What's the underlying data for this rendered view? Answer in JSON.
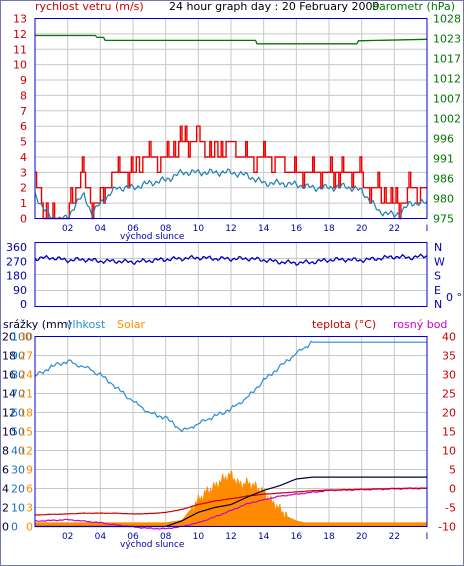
{
  "texts": {
    "wind_speed_label": "rychlost vetru (m/s)",
    "graph_title": "24 hour graph day : 20 February 2009",
    "barometer_label": "barometr (hPa)",
    "sunrise_label_1": "východ slunce",
    "sunrise_label_2": "východ slunce",
    "precip_label": "srážky (mm)",
    "humidity_label": "vlhkost",
    "solar_label": "Solar",
    "temp_label": "teplota (°C)",
    "dew_label": "rosný bod",
    "dir_unit": "0 °"
  },
  "colors": {
    "wind_gust": "#ee0000",
    "wind_avg": "#1e7fb0",
    "barometer": "#007700",
    "direction": "#0000bb",
    "humidity": "#2a8cd4",
    "solar": "#ff8c00",
    "temperature": "#cc0000",
    "dew_point": "#cc00cc",
    "precip": "#000033",
    "frame": "#0000cc",
    "grid": "#c8c8c8"
  },
  "chart_data": [
    {
      "type": "line",
      "title": "24 hour graph day : 20 February 2009",
      "x_ticks": [
        "02",
        "04",
        "06",
        "08",
        "10",
        "12",
        "14",
        "16",
        "18",
        "20",
        "22",
        "I"
      ],
      "left_axis": {
        "label": "rychlost vetru (m/s)",
        "ylim": [
          0,
          13
        ],
        "ticks": [
          "0",
          "1",
          "2",
          "3",
          "4",
          "5",
          "6",
          "7",
          "8",
          "9",
          "10",
          "11",
          "12",
          "13"
        ]
      },
      "right_axis": {
        "label": "barometr (hPa)",
        "ylim": [
          975,
          1028
        ],
        "ticks": [
          "975",
          "980",
          "986",
          "991",
          "996",
          "1002",
          "1007",
          "1012",
          "1017",
          "1023",
          "1028"
        ]
      },
      "series": [
        {
          "name": "gust",
          "axis": "left",
          "hours": [
            0,
            1,
            2,
            2.5,
            3,
            3.5,
            4,
            5,
            6,
            7,
            8,
            9,
            10,
            11,
            12,
            13,
            14,
            15,
            16,
            17,
            18,
            19,
            20,
            20.5,
            21,
            22,
            22.5,
            23,
            24
          ],
          "values": [
            3,
            0,
            0,
            2,
            3,
            1,
            1,
            3,
            3,
            4,
            4,
            5,
            5,
            4,
            5,
            4,
            4,
            4,
            3,
            3,
            3,
            3,
            3,
            2,
            2,
            1,
            1,
            2,
            2
          ]
        },
        {
          "name": "avg",
          "axis": "left",
          "hours": [
            0,
            1,
            2,
            2.5,
            3,
            3.5,
            4,
            5,
            6,
            7,
            8,
            9,
            10,
            11,
            12,
            13,
            14,
            15,
            16,
            17,
            18,
            19,
            20,
            20.5,
            21,
            22,
            22.5,
            23,
            24
          ],
          "values": [
            1.5,
            0,
            0,
            1,
            1.5,
            0.3,
            1,
            2,
            2,
            2.3,
            2.5,
            3,
            3,
            3,
            3,
            2.8,
            2.3,
            2.3,
            2.2,
            2,
            2,
            2.1,
            1.8,
            1.2,
            0.5,
            0.2,
            0.5,
            1,
            1
          ]
        },
        {
          "name": "barometer",
          "axis": "right",
          "hours": [
            0,
            3.7,
            3.8,
            4.2,
            4.3,
            13.5,
            13.6,
            19.7,
            19.8,
            24
          ],
          "values": [
            1023.5,
            1023.5,
            1023,
            1023,
            1022.2,
            1022.2,
            1021.3,
            1021.3,
            1022.1,
            1022.5
          ]
        }
      ]
    },
    {
      "type": "line",
      "title": "",
      "x_ticks": [],
      "left_axis": {
        "ylim": [
          0,
          360
        ],
        "ticks": [
          "0",
          "90",
          "180",
          "270",
          "360"
        ]
      },
      "right_axis": {
        "ticks": [
          "N",
          "W",
          "S",
          "E",
          "N"
        ]
      },
      "series": [
        {
          "name": "direction",
          "hours": [
            0,
            1,
            2,
            3,
            4,
            5,
            6,
            7,
            8,
            9,
            10,
            11,
            12,
            13,
            14,
            15,
            16,
            17,
            18,
            19,
            20,
            21,
            22,
            23,
            24
          ],
          "values": [
            270,
            275,
            260,
            265,
            255,
            255,
            250,
            258,
            265,
            270,
            275,
            270,
            268,
            270,
            262,
            250,
            245,
            250,
            262,
            265,
            260,
            270,
            280,
            275,
            285
          ]
        }
      ]
    },
    {
      "type": "line",
      "title": "",
      "x_ticks": [
        "02",
        "04",
        "06",
        "08",
        "10",
        "12",
        "14",
        "16",
        "18",
        "20",
        "22",
        "I"
      ],
      "axes": {
        "precip": {
          "label": "srážky (mm)",
          "ticks": [
            "0",
            "2",
            "4",
            "6",
            "8",
            "10",
            "12",
            "14",
            "16",
            "18",
            "20"
          ]
        },
        "humidity": {
          "label": "vlhkost",
          "ylim": [
            0,
            100
          ],
          "ticks": [
            "0",
            "10",
            "20",
            "30",
            "40",
            "50",
            "60",
            "70",
            "80",
            "90",
            "100"
          ]
        },
        "solar": {
          "label": "Solar",
          "ticks": [
            "0",
            "3",
            "6",
            "9",
            "12",
            "15",
            "18",
            "21",
            "24",
            "27",
            "30"
          ]
        },
        "temperature": {
          "label": "teplota (°C)",
          "ylim": [
            -10,
            40
          ],
          "ticks": [
            "40",
            "35",
            "30",
            "25",
            "20",
            "15",
            "10",
            "5",
            "0",
            "-5",
            "-10"
          ]
        }
      },
      "series": [
        {
          "name": "humidity",
          "axis": "humidity",
          "hours": [
            0,
            1,
            2,
            3,
            4,
            5,
            6,
            7,
            8,
            8.5,
            9,
            10,
            11,
            12,
            13,
            14,
            15,
            16,
            17,
            18,
            19,
            20,
            21,
            22,
            23,
            24
          ],
          "values": [
            79,
            84,
            87,
            84,
            80,
            73,
            66,
            60,
            57,
            54,
            50,
            54,
            58,
            62,
            68,
            77,
            84,
            91,
            97,
            97,
            97,
            97,
            97,
            97,
            97,
            97
          ]
        },
        {
          "name": "solar",
          "axis": "solar",
          "hours": [
            0,
            8,
            9,
            10,
            10.5,
            11,
            11.5,
            12,
            12.5,
            13,
            13.5,
            14,
            14.5,
            15,
            15.5,
            16,
            16.5,
            24
          ],
          "values": [
            0.6,
            0.6,
            1,
            4.2,
            5.5,
            6.3,
            7.5,
            8.2,
            6.6,
            6.9,
            6.3,
            5.4,
            3.9,
            2.7,
            1.5,
            0.9,
            0.6,
            0.6
          ]
        },
        {
          "name": "temperature",
          "axis": "temperature",
          "hours": [
            0,
            1,
            2,
            3,
            4,
            5,
            6,
            7,
            8,
            9,
            10,
            11,
            12,
            13,
            14,
            15,
            16,
            17,
            18,
            19,
            20,
            21,
            22,
            23,
            24
          ],
          "values": [
            -7,
            -6.8,
            -6.7,
            -6.5,
            -6.5,
            -6.5,
            -6.7,
            -6.6,
            -6.3,
            -5.5,
            -4.2,
            -3.3,
            -2.7,
            -2.0,
            -1.5,
            -1.2,
            -0.9,
            -0.6,
            -0.4,
            -0.3,
            -0.2,
            -0.1,
            0,
            0.1,
            0.1
          ]
        },
        {
          "name": "dew_point",
          "axis": "temperature",
          "hours": [
            0,
            1,
            2,
            3,
            4,
            5,
            6,
            7,
            8,
            9,
            10,
            11,
            12,
            13,
            14,
            15,
            16,
            17,
            18,
            19,
            20,
            21,
            22,
            23,
            24
          ],
          "values": [
            -8.6,
            -8.4,
            -8.2,
            -8.6,
            -9.0,
            -9.6,
            -10.1,
            -10.5,
            -10.6,
            -10.0,
            -9.0,
            -7.5,
            -5.8,
            -4.0,
            -3.0,
            -2.0,
            -1.5,
            -1.0,
            -0.5,
            -0.4,
            -0.3,
            -0.2,
            -0.1,
            0,
            0
          ]
        },
        {
          "name": "precip",
          "axis": "precip",
          "hours": [
            0,
            6,
            8,
            9,
            10,
            11,
            12,
            13,
            14,
            15,
            16,
            17,
            18,
            24
          ],
          "values": [
            0,
            0,
            0,
            0.6,
            1.5,
            2.0,
            2.3,
            3.1,
            3.8,
            4.3,
            5.0,
            5.2,
            5.2,
            5.2
          ]
        }
      ]
    }
  ]
}
